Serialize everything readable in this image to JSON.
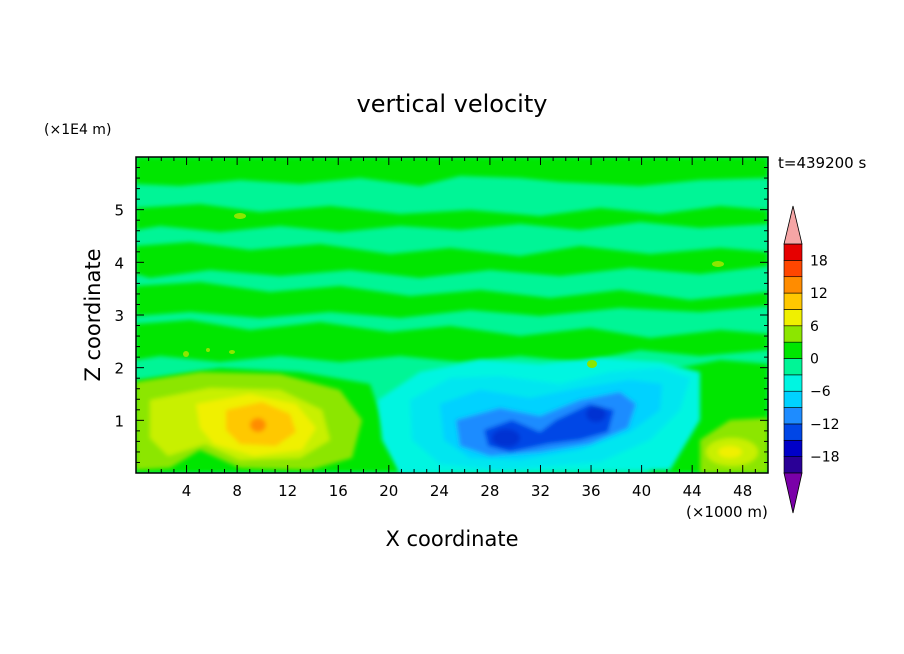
{
  "chart_data": {
    "type": "heatmap",
    "title": "vertical velocity",
    "xlabel": "X coordinate",
    "ylabel": "Z coordinate",
    "x_unit": "(×1000 m)",
    "y_unit": "(×1E4 m)",
    "time_label": "t=439200 s",
    "xlim": [
      0,
      50
    ],
    "ylim": [
      0,
      6
    ],
    "x_ticks": [
      4,
      8,
      12,
      16,
      20,
      24,
      28,
      32,
      36,
      40,
      44,
      48
    ],
    "y_ticks": [
      1,
      2,
      3,
      4,
      5
    ],
    "colorbar": {
      "ticks": [
        18,
        12,
        6,
        0,
        -6,
        -12,
        -18
      ],
      "levels": [
        -21,
        -18,
        -15,
        -12,
        -9,
        -6,
        -3,
        0,
        3,
        6,
        9,
        12,
        15,
        18,
        21
      ],
      "colors": [
        "#7a00a8",
        "#2a0096",
        "#0000c8",
        "#0046e6",
        "#1e8cff",
        "#00d2ff",
        "#00f5e1",
        "#00f596",
        "#00e600",
        "#8ce600",
        "#f0f000",
        "#ffc800",
        "#ff8c00",
        "#ff4600",
        "#e60000",
        "#f5a5a5"
      ]
    },
    "features": [
      {
        "kind": "updraft",
        "x": 10,
        "z": 0.9,
        "value": 12
      },
      {
        "kind": "updraft",
        "x": 46,
        "z": 0.45,
        "value": 8
      },
      {
        "kind": "downdraft",
        "x": 29,
        "z": 0.65,
        "value": -12
      },
      {
        "kind": "downdraft",
        "x": 36,
        "z": 1.0,
        "value": -12
      }
    ]
  }
}
